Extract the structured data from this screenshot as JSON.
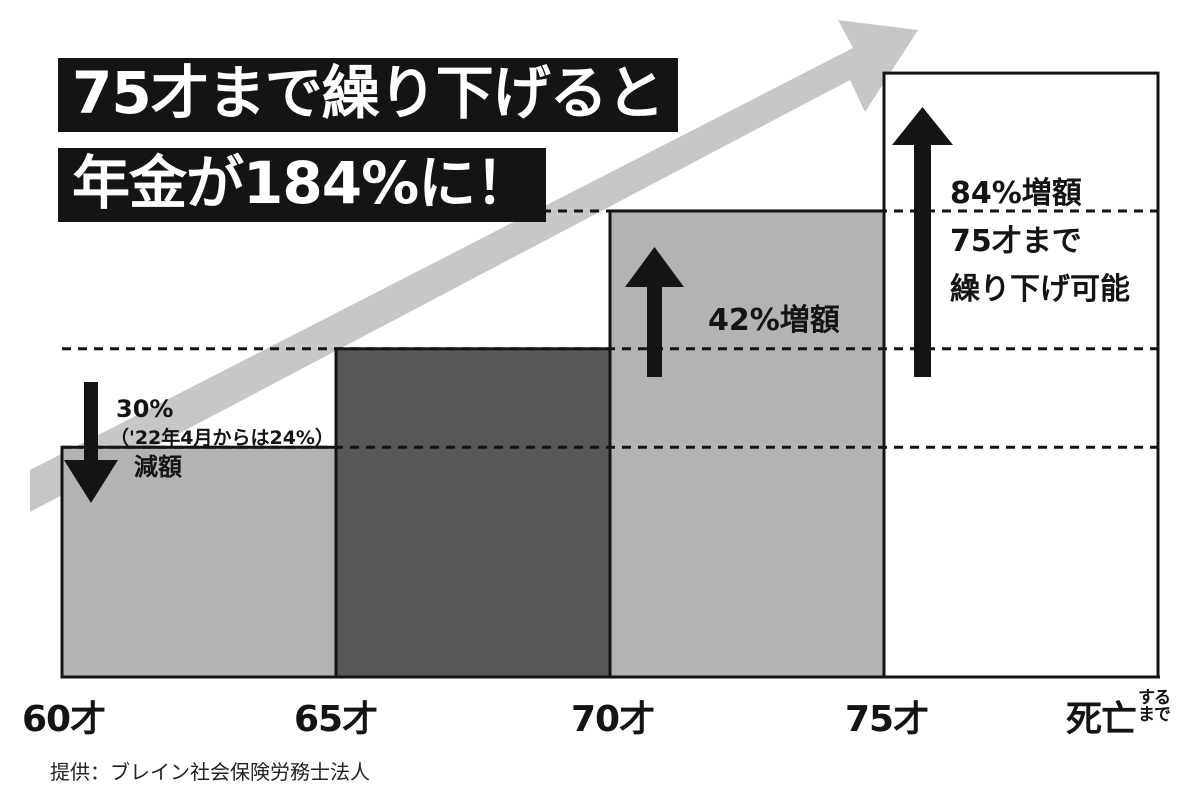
{
  "chart_data": {
    "type": "bar",
    "title_lines": [
      "75才まで繰り下げると",
      "年金が184%に！"
    ],
    "categories": [
      "60才",
      "65才",
      "70才",
      "75才"
    ],
    "x_tick_labels": [
      "60才",
      "65才",
      "70才",
      "75才",
      "死亡"
    ],
    "x_tick_end_suffix": [
      "する",
      "まで"
    ],
    "values": [
      70,
      100,
      142,
      184
    ],
    "bar_colors": [
      "#b3b3b3",
      "#59575a",
      "#b3b3b3",
      "#ffffff"
    ],
    "bar_outline": "#141414",
    "reference_lines": [
      70,
      100,
      142
    ],
    "ylim": [
      0,
      195
    ],
    "grid": false,
    "arrow_color": "#c7c7c7",
    "annotations": {
      "decrease": [
        "30%",
        "（'22年4月からは24%）",
        "減額"
      ],
      "increase_42": "42%増額",
      "increase_84": [
        "84%増額",
        "75才まで",
        "繰り下げ可能"
      ]
    }
  },
  "source": "提供：ブレイン社会保険労務士法人"
}
